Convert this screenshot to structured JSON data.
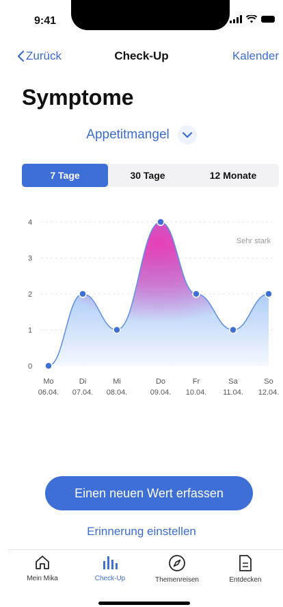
{
  "status": {
    "time": "9:41"
  },
  "nav": {
    "back": "Zurück",
    "title": "Check-Up",
    "right": "Kalender"
  },
  "page": {
    "title": "Symptome"
  },
  "symptom": {
    "selected": "Appetitmangel",
    "icon": "chevron-down-icon"
  },
  "segments": [
    {
      "label": "7 Tage",
      "active": true
    },
    {
      "label": "30 Tage",
      "active": false
    },
    {
      "label": "12 Monate",
      "active": false
    }
  ],
  "chart_data": {
    "type": "area",
    "y_ticks": [
      "0",
      "1",
      "2",
      "3",
      "4"
    ],
    "ylim": [
      0,
      4
    ],
    "annotation": "Sehr stark",
    "categories": [
      {
        "day": "Mo",
        "date": "06.04."
      },
      {
        "day": "Di",
        "date": "07.04."
      },
      {
        "day": "Mi",
        "date": "08.04."
      },
      {
        "day": "Do",
        "date": "09.04."
      },
      {
        "day": "Fr",
        "date": "10.04."
      },
      {
        "day": "Sa",
        "date": "11.04."
      },
      {
        "day": "So",
        "date": "12.04."
      }
    ],
    "values": [
      0,
      2,
      1,
      4,
      2,
      1,
      2
    ],
    "colors": {
      "line": "#5b8fe6",
      "point": "#3d6fd6",
      "peak": "#e83fb6",
      "fill_top": "#6aa2ef",
      "fill_bottom": "#f4f8ff"
    }
  },
  "actions": {
    "primary": "Einen neuen Wert erfassen",
    "secondary": "Erinnerung einstellen"
  },
  "tabs": [
    {
      "label": "Mein Mika",
      "icon": "home-icon",
      "active": false
    },
    {
      "label": "Check-Up",
      "icon": "bar-chart-icon",
      "active": true
    },
    {
      "label": "Themenreisen",
      "icon": "compass-icon",
      "active": false
    },
    {
      "label": "Entdecken",
      "icon": "document-icon",
      "active": false
    }
  ]
}
